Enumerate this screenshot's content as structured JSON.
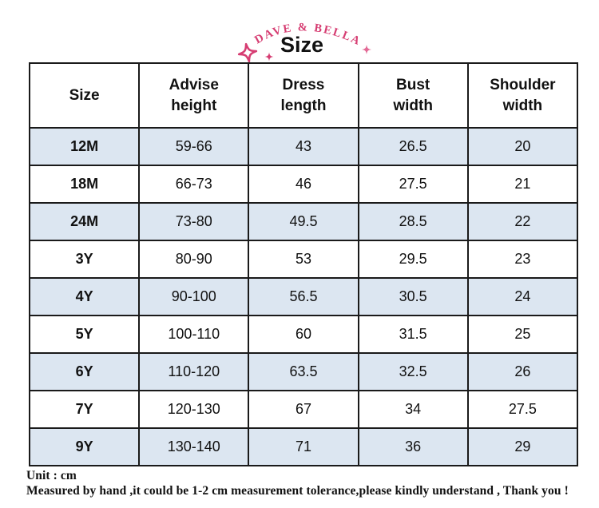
{
  "brand": {
    "name": "DAVE & BELLA"
  },
  "title": "Size",
  "icons": {
    "left_large": "sparkle-4-point-outline-icon",
    "left_small": "sparkle-4-point-filled-icon",
    "right_small": "sparkle-4-point-filled-icon"
  },
  "colors": {
    "accent_pink": "#d6functional3d72",
    "brand_pink": "#d63d72",
    "sparkle_pink_light": "#e36a96",
    "row_alt_blue": "#dce6f1",
    "border_dark": "#1a1a1a",
    "text_dark": "#111111"
  },
  "table": {
    "columns": [
      "Size",
      "Advise\nheight",
      "Dress\nlength",
      "Bust\nwidth",
      "Shoulder\nwidth"
    ],
    "rows": [
      {
        "size": "12M",
        "advise_height": "59-66",
        "dress_length": "43",
        "bust_width": "26.5",
        "shoulder_width": "20"
      },
      {
        "size": "18M",
        "advise_height": "66-73",
        "dress_length": "46",
        "bust_width": "27.5",
        "shoulder_width": "21"
      },
      {
        "size": "24M",
        "advise_height": "73-80",
        "dress_length": "49.5",
        "bust_width": "28.5",
        "shoulder_width": "22"
      },
      {
        "size": "3Y",
        "advise_height": "80-90",
        "dress_length": "53",
        "bust_width": "29.5",
        "shoulder_width": "23"
      },
      {
        "size": "4Y",
        "advise_height": "90-100",
        "dress_length": "56.5",
        "bust_width": "30.5",
        "shoulder_width": "24"
      },
      {
        "size": "5Y",
        "advise_height": "100-110",
        "dress_length": "60",
        "bust_width": "31.5",
        "shoulder_width": "25"
      },
      {
        "size": "6Y",
        "advise_height": "110-120",
        "dress_length": "63.5",
        "bust_width": "32.5",
        "shoulder_width": "26"
      },
      {
        "size": "7Y",
        "advise_height": "120-130",
        "dress_length": "67",
        "bust_width": "34",
        "shoulder_width": "27.5"
      },
      {
        "size": "9Y",
        "advise_height": "130-140",
        "dress_length": "71",
        "bust_width": "36",
        "shoulder_width": "29"
      }
    ]
  },
  "footer": {
    "unit_line": "Unit : cm",
    "tolerance_line": "Measured by hand ,it could be 1-2 cm measurement tolerance,please kindly understand , Thank you !"
  }
}
